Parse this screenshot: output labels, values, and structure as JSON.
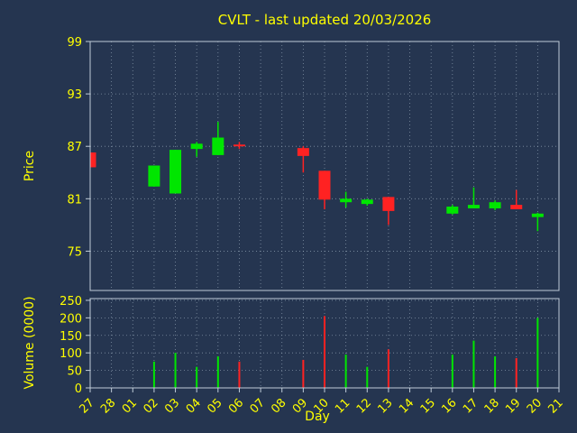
{
  "title": "CVLT - last updated 20/03/2026",
  "colors": {
    "background": "#253550",
    "up": "#00e600",
    "down": "#ff2222",
    "text": "#ffff00",
    "grid": "#9fb0c0",
    "frame": "#c0ccd8"
  },
  "chart_data": [
    {
      "type": "candlestick",
      "title": "CVLT - last updated 20/03/2026",
      "xlabel": "Day",
      "ylabel": "Price",
      "grid": true,
      "x_ticks": [
        "27",
        "28",
        "01",
        "02",
        "03",
        "04",
        "05",
        "06",
        "07",
        "08",
        "09",
        "10",
        "11",
        "12",
        "13",
        "14",
        "15",
        "16",
        "17",
        "18",
        "19",
        "20",
        "21"
      ],
      "y_ticks": [
        75,
        81,
        87,
        93,
        99
      ],
      "ylim": [
        70.5,
        99
      ],
      "candles": [
        {
          "day": "27",
          "open": 86.3,
          "high": 86.3,
          "low": 84.6,
          "close": 84.6
        },
        {
          "day": "02",
          "open": 82.4,
          "high": 84.8,
          "low": 82.4,
          "close": 84.8
        },
        {
          "day": "03",
          "open": 81.6,
          "high": 86.6,
          "low": 81.6,
          "close": 86.6
        },
        {
          "day": "04",
          "open": 86.7,
          "high": 87.5,
          "low": 85.8,
          "close": 87.3
        },
        {
          "day": "05",
          "open": 86.0,
          "high": 89.8,
          "low": 86.0,
          "close": 88.0
        },
        {
          "day": "06",
          "open": 87.2,
          "high": 87.5,
          "low": 86.7,
          "close": 87.0
        },
        {
          "day": "09",
          "open": 86.8,
          "high": 87.0,
          "low": 84.0,
          "close": 85.9
        },
        {
          "day": "10",
          "open": 84.2,
          "high": 84.2,
          "low": 79.8,
          "close": 80.9
        },
        {
          "day": "11",
          "open": 80.6,
          "high": 81.8,
          "low": 80.0,
          "close": 81.0
        },
        {
          "day": "12",
          "open": 80.4,
          "high": 81.0,
          "low": 80.2,
          "close": 80.9
        },
        {
          "day": "13",
          "open": 81.2,
          "high": 81.2,
          "low": 78.0,
          "close": 79.6
        },
        {
          "day": "16",
          "open": 79.3,
          "high": 80.3,
          "low": 79.2,
          "close": 80.1
        },
        {
          "day": "17",
          "open": 79.9,
          "high": 82.3,
          "low": 79.9,
          "close": 80.3
        },
        {
          "day": "18",
          "open": 79.9,
          "high": 80.8,
          "low": 79.7,
          "close": 80.6
        },
        {
          "day": "19",
          "open": 80.3,
          "high": 82.0,
          "low": 79.8,
          "close": 79.8
        },
        {
          "day": "20",
          "open": 78.9,
          "high": 79.4,
          "low": 77.3,
          "close": 79.3
        }
      ]
    },
    {
      "type": "bar",
      "ylabel": "Volume (0000)",
      "grid": true,
      "y_ticks": [
        0,
        50,
        100,
        150,
        200,
        250
      ],
      "ylim": [
        0,
        255
      ],
      "bars": [
        {
          "day": "02",
          "value": 75,
          "dir": "up"
        },
        {
          "day": "03",
          "value": 100,
          "dir": "up"
        },
        {
          "day": "04",
          "value": 60,
          "dir": "up"
        },
        {
          "day": "05",
          "value": 90,
          "dir": "up"
        },
        {
          "day": "06",
          "value": 75,
          "dir": "down"
        },
        {
          "day": "09",
          "value": 80,
          "dir": "down"
        },
        {
          "day": "10",
          "value": 205,
          "dir": "down"
        },
        {
          "day": "11",
          "value": 95,
          "dir": "up"
        },
        {
          "day": "12",
          "value": 60,
          "dir": "up"
        },
        {
          "day": "13",
          "value": 110,
          "dir": "down"
        },
        {
          "day": "16",
          "value": 95,
          "dir": "up"
        },
        {
          "day": "17",
          "value": 135,
          "dir": "up"
        },
        {
          "day": "18",
          "value": 90,
          "dir": "up"
        },
        {
          "day": "19",
          "value": 85,
          "dir": "down"
        },
        {
          "day": "20",
          "value": 200,
          "dir": "up"
        }
      ]
    }
  ]
}
